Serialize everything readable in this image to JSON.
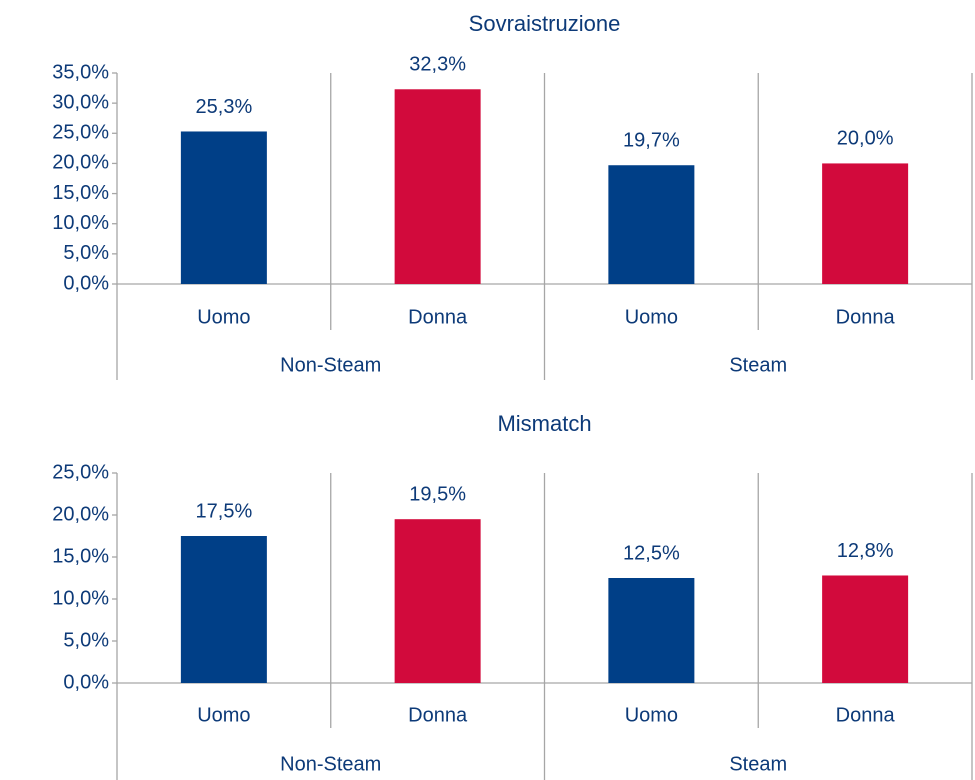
{
  "chart_data": [
    {
      "type": "bar",
      "title": "Sovraistruzione",
      "categories": [
        "Uomo",
        "Donna",
        "Uomo",
        "Donna"
      ],
      "groups": [
        "Non-Steam",
        "Steam"
      ],
      "values": [
        25.3,
        32.3,
        19.7,
        20.0
      ],
      "value_labels": [
        "25,3%",
        "32,3%",
        "19,7%",
        "20,0%"
      ],
      "colors": [
        "#003f87",
        "#d20a3c",
        "#003f87",
        "#d20a3c"
      ],
      "ylim": [
        0,
        35
      ],
      "yticks": [
        {
          "value": 0,
          "label": "0,0%"
        },
        {
          "value": 5,
          "label": "5,0%"
        },
        {
          "value": 10,
          "label": "10,0%"
        },
        {
          "value": 15,
          "label": "15,0%"
        },
        {
          "value": 20,
          "label": "20,0%"
        },
        {
          "value": 25,
          "label": "25,0%"
        },
        {
          "value": 30,
          "label": "30,0%"
        },
        {
          "value": 35,
          "label": "35,0%"
        }
      ]
    },
    {
      "type": "bar",
      "title": "Mismatch",
      "categories": [
        "Uomo",
        "Donna",
        "Uomo",
        "Donna"
      ],
      "groups": [
        "Non-Steam",
        "Steam"
      ],
      "values": [
        17.5,
        19.5,
        12.5,
        12.8
      ],
      "value_labels": [
        "17,5%",
        "19,5%",
        "12,5%",
        "12,8%"
      ],
      "colors": [
        "#003f87",
        "#d20a3c",
        "#003f87",
        "#d20a3c"
      ],
      "ylim": [
        0,
        25
      ],
      "yticks": [
        {
          "value": 0,
          "label": "0,0%"
        },
        {
          "value": 5,
          "label": "5,0%"
        },
        {
          "value": 10,
          "label": "10,0%"
        },
        {
          "value": 15,
          "label": "15,0%"
        },
        {
          "value": 20,
          "label": "20,0%"
        },
        {
          "value": 25,
          "label": "25,0%"
        }
      ]
    }
  ]
}
